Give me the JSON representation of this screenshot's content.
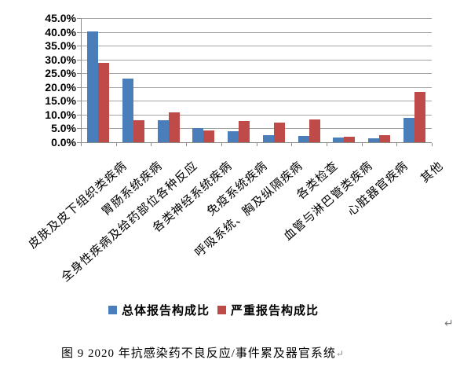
{
  "chart_data": {
    "type": "bar",
    "title": "",
    "categories": [
      "皮肤及皮下组织类疾病",
      "胃肠系统疾病",
      "全身性疾病及给药部位各种反应",
      "各类神经系统疾病",
      "免疫系统疾病",
      "呼吸系统、胸及纵隔疾病",
      "各类检查",
      "血管与淋巴管类疾病",
      "心脏器官疾病",
      "其他"
    ],
    "series": [
      {
        "name": "总体报告构成比",
        "color": "#4A7EBB",
        "values": [
          40.2,
          23.1,
          8.1,
          5.2,
          4.1,
          2.6,
          2.2,
          1.8,
          1.4,
          8.7
        ]
      },
      {
        "name": "严重报告构成比",
        "color": "#BE4B48",
        "values": [
          28.7,
          8.0,
          10.8,
          4.2,
          7.7,
          7.0,
          8.4,
          1.9,
          2.5,
          18.2
        ]
      }
    ],
    "ylim": [
      0,
      45
    ],
    "ytick_step": 5,
    "ytick_labels": [
      "45.0%",
      "40.0%",
      "35.0%",
      "30.0%",
      "25.0%",
      "20.0%",
      "15.0%",
      "10.0%",
      "5.0%",
      "0.0%"
    ],
    "grid": "horizontal",
    "legend_position": "bottom",
    "xlabel": "",
    "ylabel": ""
  },
  "colors": {
    "series_total": "#4A7EBB",
    "series_serious": "#BE4B48",
    "gridline": "#a3a3a3",
    "axis": "#8a8a8a"
  },
  "caption": {
    "text": "图 9  2020 年抗感染药不良反应/事件累及器官系统",
    "return_mark": "↵"
  },
  "marks": {
    "after_chart": "↵"
  }
}
